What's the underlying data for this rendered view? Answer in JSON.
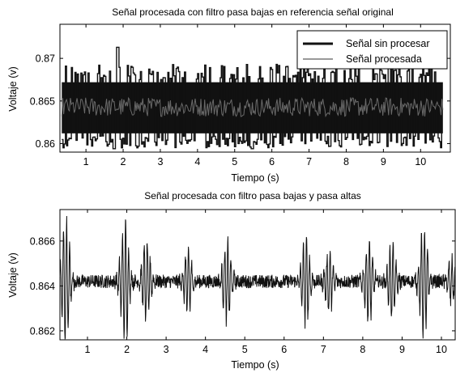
{
  "chart_data": [
    {
      "type": "line",
      "title": "Señal procesada con filtro pasa bajas en referencia señal original",
      "xlabel": "Tiempo (s)",
      "ylabel": "Voltaje (v)",
      "xlim": [
        0.3,
        10.8
      ],
      "ylim": [
        0.859,
        0.874
      ],
      "xticks": [
        "1",
        "2",
        "3",
        "4",
        "5",
        "6",
        "7",
        "8",
        "9",
        "10"
      ],
      "yticks": [
        "0.86",
        "0.865",
        "0.87"
      ],
      "grid": false,
      "legend": {
        "placement": "top-right",
        "entries": [
          "Señal sin procesar",
          "Señal procesada"
        ]
      },
      "series": [
        {
          "name": "Señal sin procesar",
          "color": "#111111",
          "x_range": [
            0.35,
            10.6
          ],
          "center": 0.8643,
          "band": [
            0.8612,
            0.8672
          ],
          "min": 0.8594,
          "max": 0.8713
        },
        {
          "name": "Señal procesada",
          "color": "#3a3a3a",
          "x_range": [
            0.35,
            10.6
          ],
          "center": 0.8643,
          "band": [
            0.8635,
            0.8651
          ]
        }
      ]
    },
    {
      "type": "line",
      "title": "Señal procesada con filtro pasa bajas y pasa altas",
      "xlabel": "Tiempo (s)",
      "ylabel": "Voltaje (v)",
      "xlim": [
        0.3,
        10.35
      ],
      "ylim": [
        0.8616,
        0.8674
      ],
      "xticks": [
        "1",
        "2",
        "3",
        "4",
        "5",
        "6",
        "7",
        "8",
        "9",
        "10"
      ],
      "yticks": [
        "0.862",
        "0.864",
        "0.866"
      ],
      "grid": false,
      "series": [
        {
          "color": "#111111",
          "center": 0.8642,
          "bursts": [
            {
              "t": 0.45,
              "amp": 0.0028
            },
            {
              "t": 1.95,
              "amp": 0.0027
            },
            {
              "t": 2.5,
              "amp": 0.0018
            },
            {
              "t": 3.55,
              "amp": 0.0015
            },
            {
              "t": 4.55,
              "amp": 0.0018
            },
            {
              "t": 6.55,
              "amp": 0.0019
            },
            {
              "t": 7.15,
              "amp": 0.0014
            },
            {
              "t": 8.15,
              "amp": 0.0019
            },
            {
              "t": 8.75,
              "amp": 0.0017
            },
            {
              "t": 9.55,
              "amp": 0.0024
            },
            {
              "t": 10.25,
              "amp": 0.001
            }
          ]
        }
      ]
    }
  ]
}
